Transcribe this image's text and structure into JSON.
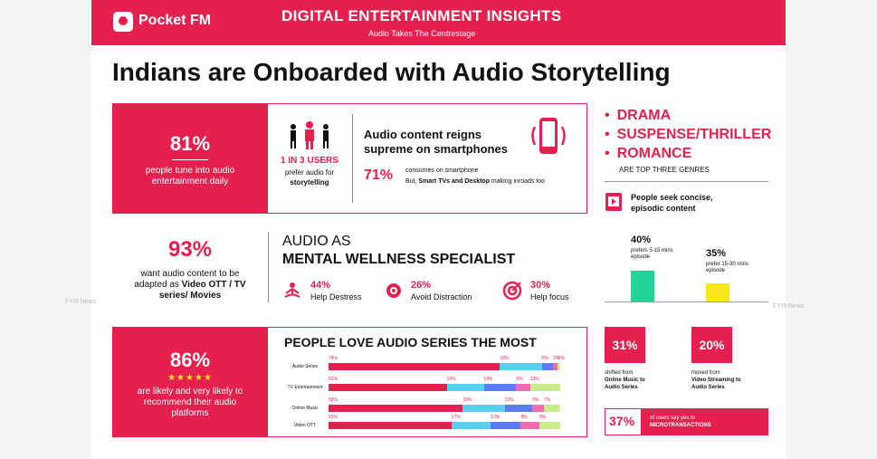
{
  "header": {
    "logo": "Pocket FM",
    "title": "DIGITAL ENTERTAINMENT INSIGHTS",
    "subtitle": "Audio Takes The Centrestage"
  },
  "main_title": "Indians are Onboarded with Audio Storytelling",
  "stat1": {
    "pct": "81%",
    "text": "people tune into audio entertainment daily"
  },
  "users": {
    "head": "1 IN 3 USERS",
    "line1": "prefer audio for",
    "line2": "storytelling"
  },
  "smartphone": {
    "title": "Audio content reigns supreme on smartphones",
    "pct": "71%",
    "line1": "consumes on smartphone",
    "line2_pre": "But, ",
    "line2_bold": "Smart TVs and Desktop",
    "line2_post": " making inroads too"
  },
  "genres": {
    "items": [
      "DRAMA",
      "SUSPENSE/THRILLER",
      "ROMANCE"
    ],
    "caption": "ARE TOP THREE GENRES"
  },
  "concise": {
    "text": "People seek concise, episodic content"
  },
  "episode": {
    "a_pct": "40%",
    "a_label": "prefers 5-15 mins episode",
    "a_value": 40,
    "a_color": "#22d39a",
    "b_pct": "35%",
    "b_label": "prefer 15-30 mins episode",
    "b_value": 35,
    "b_color": "#f8e71c"
  },
  "stat2": {
    "pct": "93%",
    "line1": "want audio content to be",
    "line2_pre": "adapted as ",
    "line2_bold": "Video OTT / TV",
    "line3_bold": "series/ Movies"
  },
  "wellness": {
    "title1": "AUDIO AS",
    "title2": "MENTAL WELLNESS SPECIALIST",
    "items": [
      {
        "pct": "44%",
        "label": "Help Destress",
        "icon": "meditation-icon"
      },
      {
        "pct": "26%",
        "label": "Avoid Distraction",
        "icon": "brain-icon"
      },
      {
        "pct": "30%",
        "label": "Help focus",
        "icon": "target-icon"
      }
    ]
  },
  "stat3": {
    "pct": "86%",
    "stars": "★★★★★",
    "text": "are likely and very likely to recommend their audio platforms"
  },
  "series": {
    "title": "PEOPLE LOVE AUDIO SERIES THE MOST",
    "colors": [
      "#e5204f",
      "#5ad0f0",
      "#5b7cf2",
      "#f26bb0",
      "#c8ec8a"
    ],
    "rows": [
      {
        "label": "Audio Series",
        "segments": [
          "74%",
          "18%",
          "5%",
          "2%",
          "1%"
        ],
        "values": [
          74,
          18,
          5,
          2,
          1
        ]
      },
      {
        "label": "TV Entertainment",
        "segments": [
          "51%",
          "16%",
          "14%",
          "6%",
          "13%"
        ],
        "values": [
          51,
          16,
          14,
          6,
          13
        ]
      },
      {
        "label": "Online Music",
        "segments": [
          "58%",
          "18%",
          "12%",
          "5%",
          "7%"
        ],
        "values": [
          58,
          18,
          12,
          5,
          7
        ]
      },
      {
        "label": "Video OTT",
        "segments": [
          "53%",
          "17%",
          "13%",
          "8%",
          "9%"
        ],
        "values": [
          53,
          17,
          13,
          8,
          9
        ]
      }
    ]
  },
  "shift": {
    "a_pct": "31%",
    "a_line1": "shifted from",
    "a_line2": "Online Music to",
    "a_line3": "Audio Series",
    "b_pct": "20%",
    "b_line1": "moved from",
    "b_line2": "Video Streaming to",
    "b_line3": "Audio Series"
  },
  "micro": {
    "pct": "37%",
    "line1": "of users say yes to",
    "line2": "MICROTRANSACTIONS"
  },
  "watermark": "FYI9 News"
}
